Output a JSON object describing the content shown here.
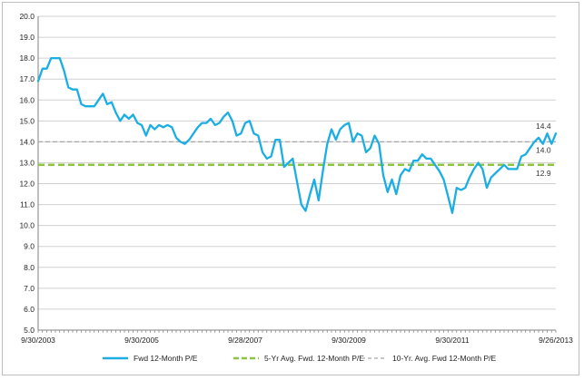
{
  "chart_data": {
    "type": "line",
    "title": "",
    "xlabel": "",
    "ylabel": "",
    "ylim": [
      5.0,
      20.0
    ],
    "y_ticks": [
      "5.0",
      "6.0",
      "7.0",
      "8.0",
      "9.0",
      "10.0",
      "11.0",
      "12.0",
      "13.0",
      "14.0",
      "15.0",
      "16.0",
      "17.0",
      "18.0",
      "19.0",
      "20.0"
    ],
    "x_tick_labels": [
      "9/30/2003",
      "9/30/2005",
      "9/28/2007",
      "9/30/2009",
      "9/30/2011",
      "9/26/2013"
    ],
    "x_range": [
      "9/30/2003",
      "9/26/2013"
    ],
    "grid": "horizontal",
    "legend_position": "bottom",
    "series": [
      {
        "name": "Fwd 12-Month P/E",
        "color": "#1aaee5",
        "style": "solid",
        "end_label": "14.4",
        "values": [
          16.9,
          17.5,
          17.5,
          18.0,
          18.0,
          18.0,
          17.4,
          16.6,
          16.5,
          16.5,
          15.8,
          15.7,
          15.7,
          15.7,
          16.0,
          16.3,
          15.8,
          15.9,
          15.4,
          15.0,
          15.3,
          15.1,
          15.3,
          14.9,
          14.8,
          14.3,
          14.8,
          14.6,
          14.8,
          14.7,
          14.8,
          14.7,
          14.2,
          14.0,
          13.9,
          14.1,
          14.4,
          14.7,
          14.9,
          14.9,
          15.1,
          14.8,
          14.9,
          15.2,
          15.4,
          15.0,
          14.3,
          14.4,
          14.9,
          15.0,
          14.4,
          14.3,
          13.5,
          13.2,
          13.3,
          14.1,
          14.1,
          12.8,
          13.0,
          13.2,
          12.1,
          11.0,
          10.7,
          11.5,
          12.2,
          11.2,
          12.6,
          13.9,
          14.6,
          14.1,
          14.6,
          14.8,
          14.9,
          14.0,
          14.4,
          14.3,
          13.5,
          13.7,
          14.3,
          13.9,
          12.4,
          11.6,
          12.2,
          11.5,
          12.4,
          12.7,
          12.6,
          13.1,
          13.1,
          13.4,
          13.2,
          13.2,
          12.9,
          12.6,
          12.2,
          11.4,
          10.6,
          11.8,
          11.7,
          11.8,
          12.3,
          12.7,
          13.0,
          12.7,
          11.8,
          12.3,
          12.5,
          12.7,
          12.9,
          12.7,
          12.7,
          12.7,
          13.3,
          13.4,
          13.7,
          14.0,
          14.2,
          13.9,
          14.4,
          13.9,
          14.4
        ]
      },
      {
        "name": "5-Yr Avg. Fwd. 12-Month P/E",
        "color": "#8cc63f",
        "style": "dashed",
        "value": 12.9,
        "end_label": "12.9"
      },
      {
        "name": "10-Yr. Avg. Fwd 12-Month P/E",
        "color": "#a6a6a6",
        "style": "dashed",
        "value": 14.0,
        "end_label": "14.0"
      }
    ]
  }
}
